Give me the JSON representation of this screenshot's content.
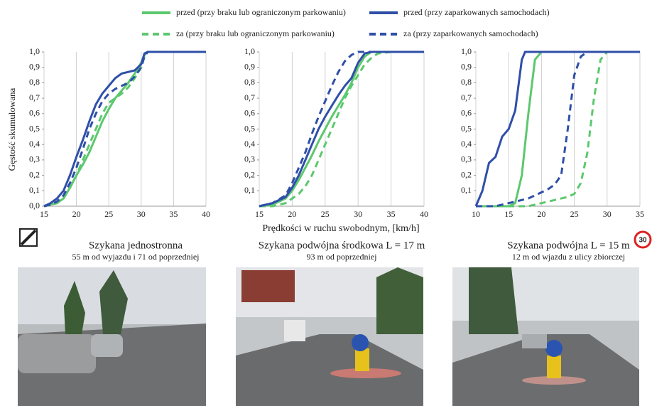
{
  "chart_data": [
    {
      "type": "line",
      "title": "Szykana jednostronna",
      "subtitle": "55 m od wyjazdu i 71 od poprzedniej",
      "ylabel": "Gęstość skumulowana",
      "xlim": [
        15,
        40
      ],
      "ylim": [
        0,
        1
      ],
      "xticks": [
        15,
        20,
        25,
        30,
        35,
        40
      ],
      "yticks": [
        {
          "value": 0,
          "label": "0,0"
        },
        {
          "value": 0.1,
          "label": "0,1"
        },
        {
          "value": 0.2,
          "label": "0,2"
        },
        {
          "value": 0.3,
          "label": "0,3"
        },
        {
          "value": 0.4,
          "label": "0,4"
        },
        {
          "value": 0.5,
          "label": "0,5"
        },
        {
          "value": 0.6,
          "label": "0,6"
        },
        {
          "value": 0.7,
          "label": "0,7"
        },
        {
          "value": 0.8,
          "label": "0,8"
        },
        {
          "value": 0.9,
          "label": "0,9"
        },
        {
          "value": 1,
          "label": "1,0"
        }
      ],
      "x": [
        15,
        16,
        17,
        18,
        19,
        20,
        21,
        22,
        23,
        24,
        25,
        26,
        27,
        28,
        29,
        30,
        30.5,
        31,
        40
      ],
      "series": [
        {
          "name": "przed (przy braku lub ograniczonym parkowaniu)",
          "color": "#5cc86e",
          "dash": false,
          "values": [
            0,
            0.01,
            0.02,
            0.05,
            0.12,
            0.2,
            0.27,
            0.35,
            0.45,
            0.55,
            0.63,
            0.7,
            0.75,
            0.8,
            0.86,
            0.93,
            0.98,
            1,
            1
          ]
        },
        {
          "name": "za (przy braku lub ograniczonym parkowaniu)",
          "color": "#5cc86e",
          "dash": true,
          "values": [
            0,
            0.01,
            0.02,
            0.05,
            0.12,
            0.2,
            0.3,
            0.4,
            0.5,
            0.6,
            0.67,
            0.7,
            0.73,
            0.77,
            0.83,
            0.9,
            0.97,
            1,
            1
          ]
        },
        {
          "name": "przed (przy zaparkowanych samochodach)",
          "color": "#2f4fa8",
          "dash": false,
          "values": [
            0,
            0.02,
            0.05,
            0.1,
            0.2,
            0.32,
            0.43,
            0.55,
            0.66,
            0.73,
            0.78,
            0.83,
            0.86,
            0.87,
            0.88,
            0.92,
            0.99,
            1,
            1
          ]
        },
        {
          "name": "za (przy zaparkowanych samochodach)",
          "color": "#2f4fa8",
          "dash": true,
          "values": [
            0,
            0.01,
            0.03,
            0.07,
            0.15,
            0.25,
            0.37,
            0.5,
            0.6,
            0.68,
            0.73,
            0.76,
            0.78,
            0.8,
            0.84,
            0.9,
            0.97,
            1,
            1
          ]
        }
      ]
    },
    {
      "type": "line",
      "title": "Szykana podwójna środkowa L = 17 m",
      "subtitle": "93 m od poprzedniej",
      "xlabel": "Prędkości w ruchu swobodnym, [km/h]",
      "xlim": [
        15,
        40
      ],
      "ylim": [
        0,
        1
      ],
      "xticks": [
        15,
        20,
        25,
        30,
        35,
        40
      ],
      "yticks": [
        {
          "value": 0.1,
          "label": "0,1"
        },
        {
          "value": 0.2,
          "label": "0,2"
        },
        {
          "value": 0.3,
          "label": "0,3"
        },
        {
          "value": 0.4,
          "label": "0,4"
        },
        {
          "value": 0.5,
          "label": "0,5"
        },
        {
          "value": 0.6,
          "label": "0,6"
        },
        {
          "value": 0.7,
          "label": "0,7"
        },
        {
          "value": 0.8,
          "label": "0,8"
        },
        {
          "value": 0.9,
          "label": "0,9"
        },
        {
          "value": 1,
          "label": "1,0"
        }
      ],
      "x": [
        15,
        17,
        19,
        20,
        21,
        22,
        23,
        24,
        25,
        26,
        27,
        28,
        29,
        30,
        31,
        32,
        33,
        35,
        40
      ],
      "series": [
        {
          "color": "#5cc86e",
          "dash": false,
          "values": [
            0,
            0.01,
            0.05,
            0.1,
            0.17,
            0.25,
            0.33,
            0.42,
            0.5,
            0.58,
            0.65,
            0.72,
            0.8,
            0.9,
            0.97,
            1,
            1,
            1,
            1
          ]
        },
        {
          "color": "#5cc86e",
          "dash": true,
          "values": [
            0,
            0,
            0.02,
            0.05,
            0.08,
            0.13,
            0.2,
            0.3,
            0.4,
            0.5,
            0.6,
            0.7,
            0.78,
            0.85,
            0.92,
            0.96,
            0.99,
            1,
            1
          ]
        },
        {
          "color": "#2f4fa8",
          "dash": false,
          "values": [
            0,
            0.02,
            0.06,
            0.12,
            0.2,
            0.3,
            0.4,
            0.5,
            0.58,
            0.65,
            0.72,
            0.78,
            0.83,
            0.93,
            0.99,
            1,
            1,
            1,
            1
          ]
        },
        {
          "color": "#2f4fa8",
          "dash": true,
          "values": [
            0,
            0.02,
            0.07,
            0.15,
            0.25,
            0.35,
            0.47,
            0.58,
            0.68,
            0.78,
            0.87,
            0.94,
            0.98,
            1,
            1,
            1,
            1,
            1,
            1
          ]
        }
      ]
    },
    {
      "type": "line",
      "title": "Szykana podwójna L = 15 m",
      "subtitle": "12 m od wjazdu z ulicy zbiorczej",
      "sign": "30",
      "xlim": [
        10,
        35
      ],
      "ylim": [
        0,
        1
      ],
      "xticks": [
        10,
        15,
        20,
        25,
        30,
        35
      ],
      "yticks": [
        {
          "value": 0.1,
          "label": "0,1"
        },
        {
          "value": 0.2,
          "label": "0,2"
        },
        {
          "value": 0.3,
          "label": "0,3"
        },
        {
          "value": 0.4,
          "label": "0,4"
        },
        {
          "value": 0.5,
          "label": "0,5"
        },
        {
          "value": 0.6,
          "label": "0,6"
        },
        {
          "value": 0.7,
          "label": "0,7"
        },
        {
          "value": 0.8,
          "label": "0,8"
        },
        {
          "value": 0.9,
          "label": "0,9"
        },
        {
          "value": 1,
          "label": "1,0"
        }
      ],
      "x": [
        10,
        11,
        12,
        13,
        14,
        15,
        16,
        17,
        17.5,
        18,
        19,
        20,
        21,
        22,
        23,
        24,
        25,
        26,
        27,
        28,
        29,
        30,
        35
      ],
      "series": [
        {
          "color": "#5cc86e",
          "dash": false,
          "values": [
            0,
            0,
            0,
            0,
            0,
            0,
            0.02,
            0.2,
            0.4,
            0.6,
            0.95,
            1,
            1,
            1,
            1,
            1,
            1,
            1,
            1,
            1,
            1,
            1,
            1
          ]
        },
        {
          "color": "#5cc86e",
          "dash": true,
          "values": [
            0,
            0,
            0,
            0,
            0,
            0,
            0,
            0,
            0,
            0,
            0.01,
            0.02,
            0.03,
            0.04,
            0.05,
            0.06,
            0.08,
            0.15,
            0.35,
            0.7,
            0.95,
            1,
            1
          ]
        },
        {
          "color": "#2f4fa8",
          "dash": false,
          "values": [
            0,
            0.1,
            0.28,
            0.32,
            0.45,
            0.5,
            0.62,
            0.95,
            1,
            1,
            1,
            1,
            1,
            1,
            1,
            1,
            1,
            1,
            1,
            1,
            1,
            1,
            1
          ]
        },
        {
          "color": "#2f4fa8",
          "dash": true,
          "values": [
            0,
            0,
            0,
            0,
            0.01,
            0.02,
            0.03,
            0.04,
            0.045,
            0.05,
            0.07,
            0.09,
            0.11,
            0.14,
            0.2,
            0.5,
            0.85,
            0.97,
            1,
            1,
            1,
            1,
            1
          ]
        }
      ]
    }
  ]
}
